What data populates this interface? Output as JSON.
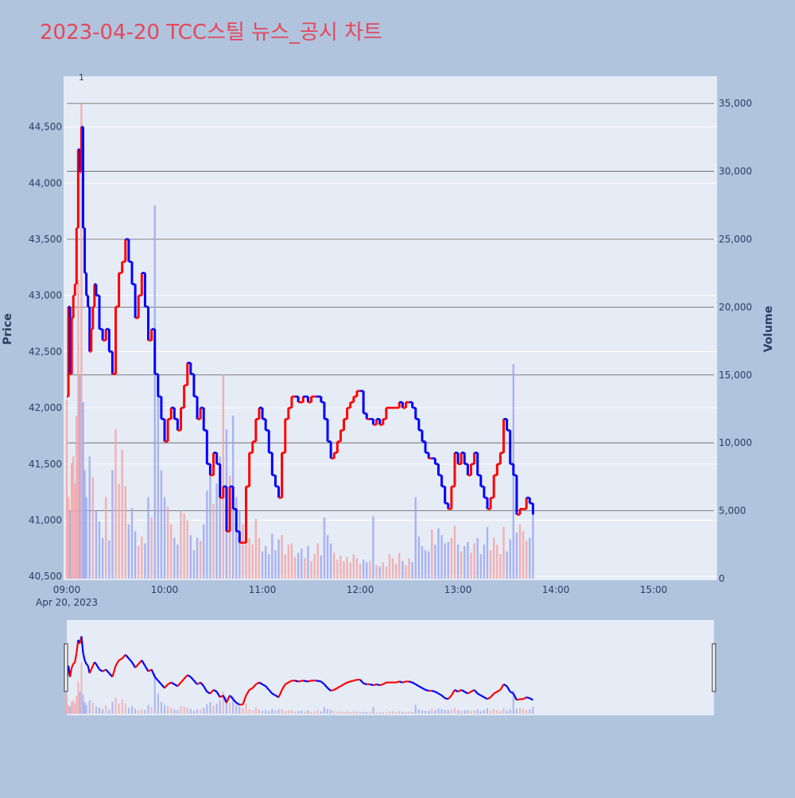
{
  "page": {
    "background": "#b0c4de",
    "plot_background": "#e5ecf6"
  },
  "chart_data": {
    "type": "candlestick",
    "title": "2023-04-20 TCC스틸 뉴스_공시 차트",
    "title_color": "#e5475a",
    "price_axis": {
      "label": "Price",
      "range": [
        40480,
        44950
      ],
      "ticks": [
        40500,
        41000,
        41500,
        42000,
        42500,
        43000,
        43500,
        44000,
        44500
      ],
      "tick_labels": [
        "40,500",
        "41,000",
        "41,500",
        "42,000",
        "42,500",
        "43,000",
        "43,500",
        "44,000",
        "44,500"
      ]
    },
    "volume_axis": {
      "label": "Volume",
      "range": [
        0,
        37000
      ],
      "ticks": [
        0,
        5000,
        10000,
        15000,
        20000,
        25000,
        30000,
        35000
      ],
      "tick_labels": [
        "0",
        "5,000",
        "10,000",
        "15,000",
        "20,000",
        "25,000",
        "30,000",
        "35,000"
      ]
    },
    "time_axis": {
      "range_minutes": [
        540,
        937
      ],
      "ticks": [
        540,
        600,
        660,
        720,
        780,
        840,
        900
      ],
      "tick_labels": [
        "09:00",
        "10:00",
        "11:00",
        "12:00",
        "13:00",
        "14:00",
        "15:00"
      ],
      "date_label": "Apr 20, 2023"
    },
    "annotations": [
      {
        "text": "1",
        "time_minutes": 549
      }
    ],
    "colors": {
      "up": "#ff0000",
      "down": "#0000ff",
      "volume_up": "#f4a6a6",
      "volume_down": "#9ea8f0"
    },
    "price_path": [
      [
        540,
        42100
      ],
      [
        541,
        42900
      ],
      [
        542,
        42300
      ],
      [
        543,
        42800
      ],
      [
        544,
        43000
      ],
      [
        545,
        43100
      ],
      [
        546,
        43600
      ],
      [
        547,
        44300
      ],
      [
        548,
        44100
      ],
      [
        549,
        44500
      ],
      [
        550,
        43600
      ],
      [
        551,
        43200
      ],
      [
        552,
        43000
      ],
      [
        553,
        42900
      ],
      [
        554,
        42500
      ],
      [
        555,
        42700
      ],
      [
        556,
        42900
      ],
      [
        557,
        43100
      ],
      [
        558,
        43000
      ],
      [
        560,
        42700
      ],
      [
        562,
        42600
      ],
      [
        564,
        42700
      ],
      [
        566,
        42500
      ],
      [
        568,
        42300
      ],
      [
        570,
        42900
      ],
      [
        572,
        43200
      ],
      [
        574,
        43300
      ],
      [
        576,
        43500
      ],
      [
        578,
        43300
      ],
      [
        580,
        43100
      ],
      [
        582,
        42800
      ],
      [
        584,
        43000
      ],
      [
        586,
        43200
      ],
      [
        588,
        42900
      ],
      [
        590,
        42600
      ],
      [
        592,
        42700
      ],
      [
        594,
        42300
      ],
      [
        596,
        42100
      ],
      [
        598,
        41900
      ],
      [
        600,
        41700
      ],
      [
        602,
        41900
      ],
      [
        604,
        42000
      ],
      [
        606,
        41900
      ],
      [
        608,
        41800
      ],
      [
        610,
        42000
      ],
      [
        612,
        42200
      ],
      [
        614,
        42400
      ],
      [
        616,
        42300
      ],
      [
        618,
        42100
      ],
      [
        620,
        41900
      ],
      [
        622,
        42000
      ],
      [
        624,
        41800
      ],
      [
        626,
        41500
      ],
      [
        628,
        41400
      ],
      [
        630,
        41600
      ],
      [
        632,
        41500
      ],
      [
        634,
        41200
      ],
      [
        636,
        41300
      ],
      [
        638,
        40900
      ],
      [
        640,
        41300
      ],
      [
        642,
        41100
      ],
      [
        644,
        40900
      ],
      [
        646,
        40800
      ],
      [
        648,
        40800
      ],
      [
        650,
        41300
      ],
      [
        652,
        41600
      ],
      [
        654,
        41700
      ],
      [
        656,
        41900
      ],
      [
        658,
        42000
      ],
      [
        660,
        41900
      ],
      [
        662,
        41800
      ],
      [
        664,
        41600
      ],
      [
        666,
        41400
      ],
      [
        668,
        41300
      ],
      [
        670,
        41200
      ],
      [
        672,
        41600
      ],
      [
        674,
        41900
      ],
      [
        676,
        42000
      ],
      [
        678,
        42100
      ],
      [
        680,
        42100
      ],
      [
        682,
        42050
      ],
      [
        685,
        42100
      ],
      [
        688,
        42050
      ],
      [
        690,
        42100
      ],
      [
        693,
        42100
      ],
      [
        696,
        42050
      ],
      [
        698,
        41900
      ],
      [
        700,
        41700
      ],
      [
        702,
        41550
      ],
      [
        704,
        41600
      ],
      [
        706,
        41700
      ],
      [
        708,
        41800
      ],
      [
        710,
        41900
      ],
      [
        712,
        42000
      ],
      [
        714,
        42050
      ],
      [
        716,
        42100
      ],
      [
        718,
        42150
      ],
      [
        720,
        42150
      ],
      [
        722,
        41950
      ],
      [
        724,
        41900
      ],
      [
        726,
        41900
      ],
      [
        728,
        41850
      ],
      [
        730,
        41900
      ],
      [
        732,
        41850
      ],
      [
        734,
        41900
      ],
      [
        736,
        42000
      ],
      [
        738,
        42000
      ],
      [
        740,
        42000
      ],
      [
        742,
        42000
      ],
      [
        744,
        42050
      ],
      [
        746,
        42000
      ],
      [
        748,
        42050
      ],
      [
        750,
        42050
      ],
      [
        752,
        42000
      ],
      [
        754,
        41900
      ],
      [
        756,
        41800
      ],
      [
        758,
        41700
      ],
      [
        760,
        41600
      ],
      [
        762,
        41550
      ],
      [
        764,
        41550
      ],
      [
        766,
        41500
      ],
      [
        768,
        41400
      ],
      [
        770,
        41300
      ],
      [
        772,
        41150
      ],
      [
        774,
        41100
      ],
      [
        776,
        41300
      ],
      [
        778,
        41600
      ],
      [
        780,
        41500
      ],
      [
        782,
        41600
      ],
      [
        784,
        41500
      ],
      [
        786,
        41400
      ],
      [
        788,
        41500
      ],
      [
        790,
        41600
      ],
      [
        792,
        41400
      ],
      [
        794,
        41300
      ],
      [
        796,
        41200
      ],
      [
        798,
        41100
      ],
      [
        800,
        41200
      ],
      [
        802,
        41400
      ],
      [
        804,
        41500
      ],
      [
        806,
        41600
      ],
      [
        808,
        41900
      ],
      [
        810,
        41800
      ],
      [
        812,
        41500
      ],
      [
        814,
        41400
      ],
      [
        816,
        41050
      ],
      [
        818,
        41100
      ],
      [
        820,
        41100
      ],
      [
        822,
        41200
      ],
      [
        824,
        41150
      ],
      [
        826,
        41050
      ]
    ],
    "volume_bars": [
      [
        540,
        13200
      ],
      [
        541,
        6000
      ],
      [
        542,
        5000
      ],
      [
        543,
        8500
      ],
      [
        544,
        9000
      ],
      [
        545,
        7000
      ],
      [
        546,
        12000
      ],
      [
        547,
        22000
      ],
      [
        548,
        15000
      ],
      [
        549,
        35000
      ],
      [
        550,
        13000
      ],
      [
        551,
        8000
      ],
      [
        552,
        6000
      ],
      [
        554,
        9000
      ],
      [
        556,
        7500
      ],
      [
        558,
        5000
      ],
      [
        560,
        4200
      ],
      [
        562,
        3000
      ],
      [
        564,
        6000
      ],
      [
        566,
        2800
      ],
      [
        568,
        8000
      ],
      [
        570,
        11000
      ],
      [
        572,
        7000
      ],
      [
        574,
        9500
      ],
      [
        576,
        6800
      ],
      [
        578,
        4000
      ],
      [
        580,
        5200
      ],
      [
        582,
        3500
      ],
      [
        584,
        2400
      ],
      [
        586,
        3100
      ],
      [
        588,
        2600
      ],
      [
        590,
        6000
      ],
      [
        592,
        4500
      ],
      [
        594,
        27500
      ],
      [
        596,
        14000
      ],
      [
        598,
        8000
      ],
      [
        600,
        6000
      ],
      [
        602,
        5300
      ],
      [
        604,
        4000
      ],
      [
        606,
        3000
      ],
      [
        608,
        2500
      ],
      [
        610,
        5000
      ],
      [
        612,
        4800
      ],
      [
        614,
        4300
      ],
      [
        616,
        3200
      ],
      [
        618,
        2100
      ],
      [
        620,
        3000
      ],
      [
        622,
        2800
      ],
      [
        624,
        4000
      ],
      [
        626,
        6500
      ],
      [
        628,
        8000
      ],
      [
        630,
        5500
      ],
      [
        632,
        7000
      ],
      [
        634,
        9000
      ],
      [
        636,
        15000
      ],
      [
        638,
        11000
      ],
      [
        640,
        7600
      ],
      [
        642,
        12000
      ],
      [
        644,
        6000
      ],
      [
        646,
        5000
      ],
      [
        648,
        4000
      ],
      [
        650,
        6800
      ],
      [
        652,
        3000
      ],
      [
        654,
        2500
      ],
      [
        656,
        4400
      ],
      [
        658,
        3000
      ],
      [
        660,
        2000
      ],
      [
        662,
        2400
      ],
      [
        664,
        1800
      ],
      [
        666,
        3300
      ],
      [
        668,
        2100
      ],
      [
        670,
        2900
      ],
      [
        672,
        3200
      ],
      [
        674,
        1800
      ],
      [
        676,
        2500
      ],
      [
        678,
        2600
      ],
      [
        680,
        1600
      ],
      [
        682,
        1900
      ],
      [
        684,
        2200
      ],
      [
        686,
        1500
      ],
      [
        688,
        2400
      ],
      [
        690,
        1300
      ],
      [
        692,
        1800
      ],
      [
        694,
        2600
      ],
      [
        696,
        1700
      ],
      [
        698,
        4500
      ],
      [
        700,
        3200
      ],
      [
        702,
        2600
      ],
      [
        704,
        1900
      ],
      [
        706,
        1400
      ],
      [
        708,
        1700
      ],
      [
        710,
        1300
      ],
      [
        712,
        1600
      ],
      [
        714,
        1200
      ],
      [
        716,
        1800
      ],
      [
        718,
        1500
      ],
      [
        720,
        1100
      ],
      [
        722,
        1400
      ],
      [
        724,
        1200
      ],
      [
        726,
        1300
      ],
      [
        728,
        4600
      ],
      [
        730,
        1000
      ],
      [
        732,
        900
      ],
      [
        734,
        1200
      ],
      [
        736,
        900
      ],
      [
        738,
        1800
      ],
      [
        740,
        1500
      ],
      [
        742,
        1100
      ],
      [
        744,
        1900
      ],
      [
        746,
        1300
      ],
      [
        748,
        1000
      ],
      [
        750,
        1500
      ],
      [
        752,
        1200
      ],
      [
        754,
        6000
      ],
      [
        756,
        3100
      ],
      [
        758,
        2400
      ],
      [
        760,
        2100
      ],
      [
        762,
        2000
      ],
      [
        764,
        3600
      ],
      [
        766,
        2500
      ],
      [
        768,
        3700
      ],
      [
        770,
        3200
      ],
      [
        772,
        2600
      ],
      [
        774,
        2700
      ],
      [
        776,
        3000
      ],
      [
        778,
        3900
      ],
      [
        780,
        2500
      ],
      [
        782,
        2000
      ],
      [
        784,
        2400
      ],
      [
        786,
        2700
      ],
      [
        788,
        1900
      ],
      [
        790,
        2600
      ],
      [
        792,
        3000
      ],
      [
        794,
        1800
      ],
      [
        796,
        2500
      ],
      [
        798,
        3800
      ],
      [
        800,
        2100
      ],
      [
        802,
        3000
      ],
      [
        804,
        2500
      ],
      [
        806,
        1800
      ],
      [
        808,
        3800
      ],
      [
        810,
        2000
      ],
      [
        812,
        2900
      ],
      [
        814,
        15800
      ],
      [
        816,
        3400
      ],
      [
        818,
        4000
      ],
      [
        820,
        3500
      ],
      [
        822,
        2800
      ],
      [
        824,
        3000
      ],
      [
        826,
        4800
      ]
    ]
  }
}
